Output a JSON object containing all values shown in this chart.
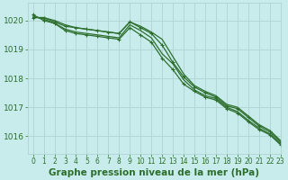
{
  "title": "Graphe pression niveau de la mer (hPa)",
  "background_color": "#c8ecec",
  "grid_color": "#b0d4d4",
  "line_color": "#2d6e2d",
  "xlim": [
    -0.5,
    23
  ],
  "ylim": [
    1015.4,
    1020.6
  ],
  "yticks": [
    1016,
    1017,
    1018,
    1019,
    1020
  ],
  "xticks": [
    0,
    1,
    2,
    3,
    4,
    5,
    6,
    7,
    8,
    9,
    10,
    11,
    12,
    13,
    14,
    15,
    16,
    17,
    18,
    19,
    20,
    21,
    22,
    23
  ],
  "series": [
    {
      "y": [
        1020.1,
        1020.1,
        1019.95,
        1019.8,
        1019.75,
        1019.7,
        1019.65,
        1019.6,
        1019.55,
        1019.95,
        1019.75,
        1019.55,
        1019.15,
        1018.55,
        1018.05,
        1017.7,
        1017.5,
        1017.35,
        1017.05,
        1016.95,
        1016.65,
        1016.35,
        1016.15,
        1015.8
      ],
      "marker": true
    },
    {
      "y": [
        1020.1,
        1020.1,
        1020.0,
        1019.85,
        1019.75,
        1019.7,
        1019.65,
        1019.6,
        1019.55,
        1019.95,
        1019.8,
        1019.6,
        1019.35,
        1018.75,
        1018.15,
        1017.75,
        1017.55,
        1017.4,
        1017.1,
        1017.0,
        1016.7,
        1016.4,
        1016.2,
        1015.85
      ],
      "marker": false
    },
    {
      "y": [
        1020.15,
        1020.05,
        1019.9,
        1019.7,
        1019.6,
        1019.55,
        1019.5,
        1019.45,
        1019.4,
        1019.85,
        1019.65,
        1019.4,
        1018.85,
        1018.5,
        1017.95,
        1017.6,
        1017.4,
        1017.3,
        1017.0,
        1016.85,
        1016.55,
        1016.28,
        1016.08,
        1015.75
      ],
      "marker": false
    },
    {
      "y": [
        1020.2,
        1020.0,
        1019.9,
        1019.65,
        1019.55,
        1019.5,
        1019.45,
        1019.4,
        1019.35,
        1019.75,
        1019.5,
        1019.25,
        1018.7,
        1018.3,
        1017.8,
        1017.55,
        1017.35,
        1017.25,
        1016.95,
        1016.8,
        1016.5,
        1016.23,
        1016.05,
        1015.7
      ],
      "marker": true
    }
  ],
  "markersize": 3.5,
  "linewidth": 0.9,
  "title_fontsize": 7.5,
  "ytick_fontsize": 6.5,
  "xtick_fontsize": 5.5
}
